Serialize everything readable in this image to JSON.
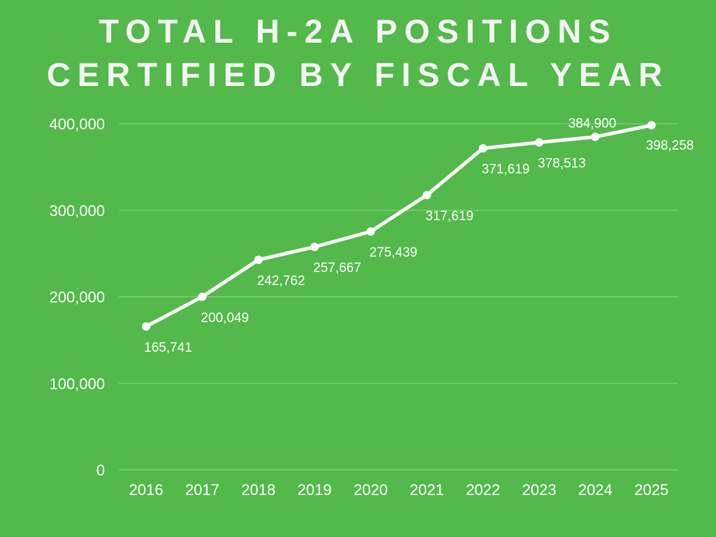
{
  "title_lines": [
    "TOTAL H-2A POSITIONS",
    "CERTIFIED BY FISCAL YEAR"
  ],
  "colors": {
    "background": "#52b94a",
    "line": "#ffffff",
    "grid": "#8fd488",
    "text": "#ffffff"
  },
  "chart_data": {
    "type": "line",
    "title": "TOTAL H-2A POSITIONS CERTIFIED BY FISCAL YEAR",
    "xlabel": "",
    "ylabel": "",
    "categories": [
      "2016",
      "2017",
      "2018",
      "2019",
      "2020",
      "2021",
      "2022",
      "2023",
      "2024",
      "2025"
    ],
    "values": [
      165741,
      200049,
      242762,
      257667,
      275439,
      317619,
      371619,
      378513,
      384900,
      398258
    ],
    "data_labels": [
      "165,741",
      "200,049",
      "242,762",
      "257,667",
      "275,439",
      "317,619",
      "371,619",
      "378,513",
      "384,900",
      "398,258"
    ],
    "ylim": [
      0,
      400000
    ],
    "yticks": [
      0,
      100000,
      200000,
      300000,
      400000
    ],
    "ytick_labels": [
      "0",
      "100,000",
      "200,000",
      "300,000",
      "400,000"
    ],
    "grid": true,
    "legend": "none"
  }
}
